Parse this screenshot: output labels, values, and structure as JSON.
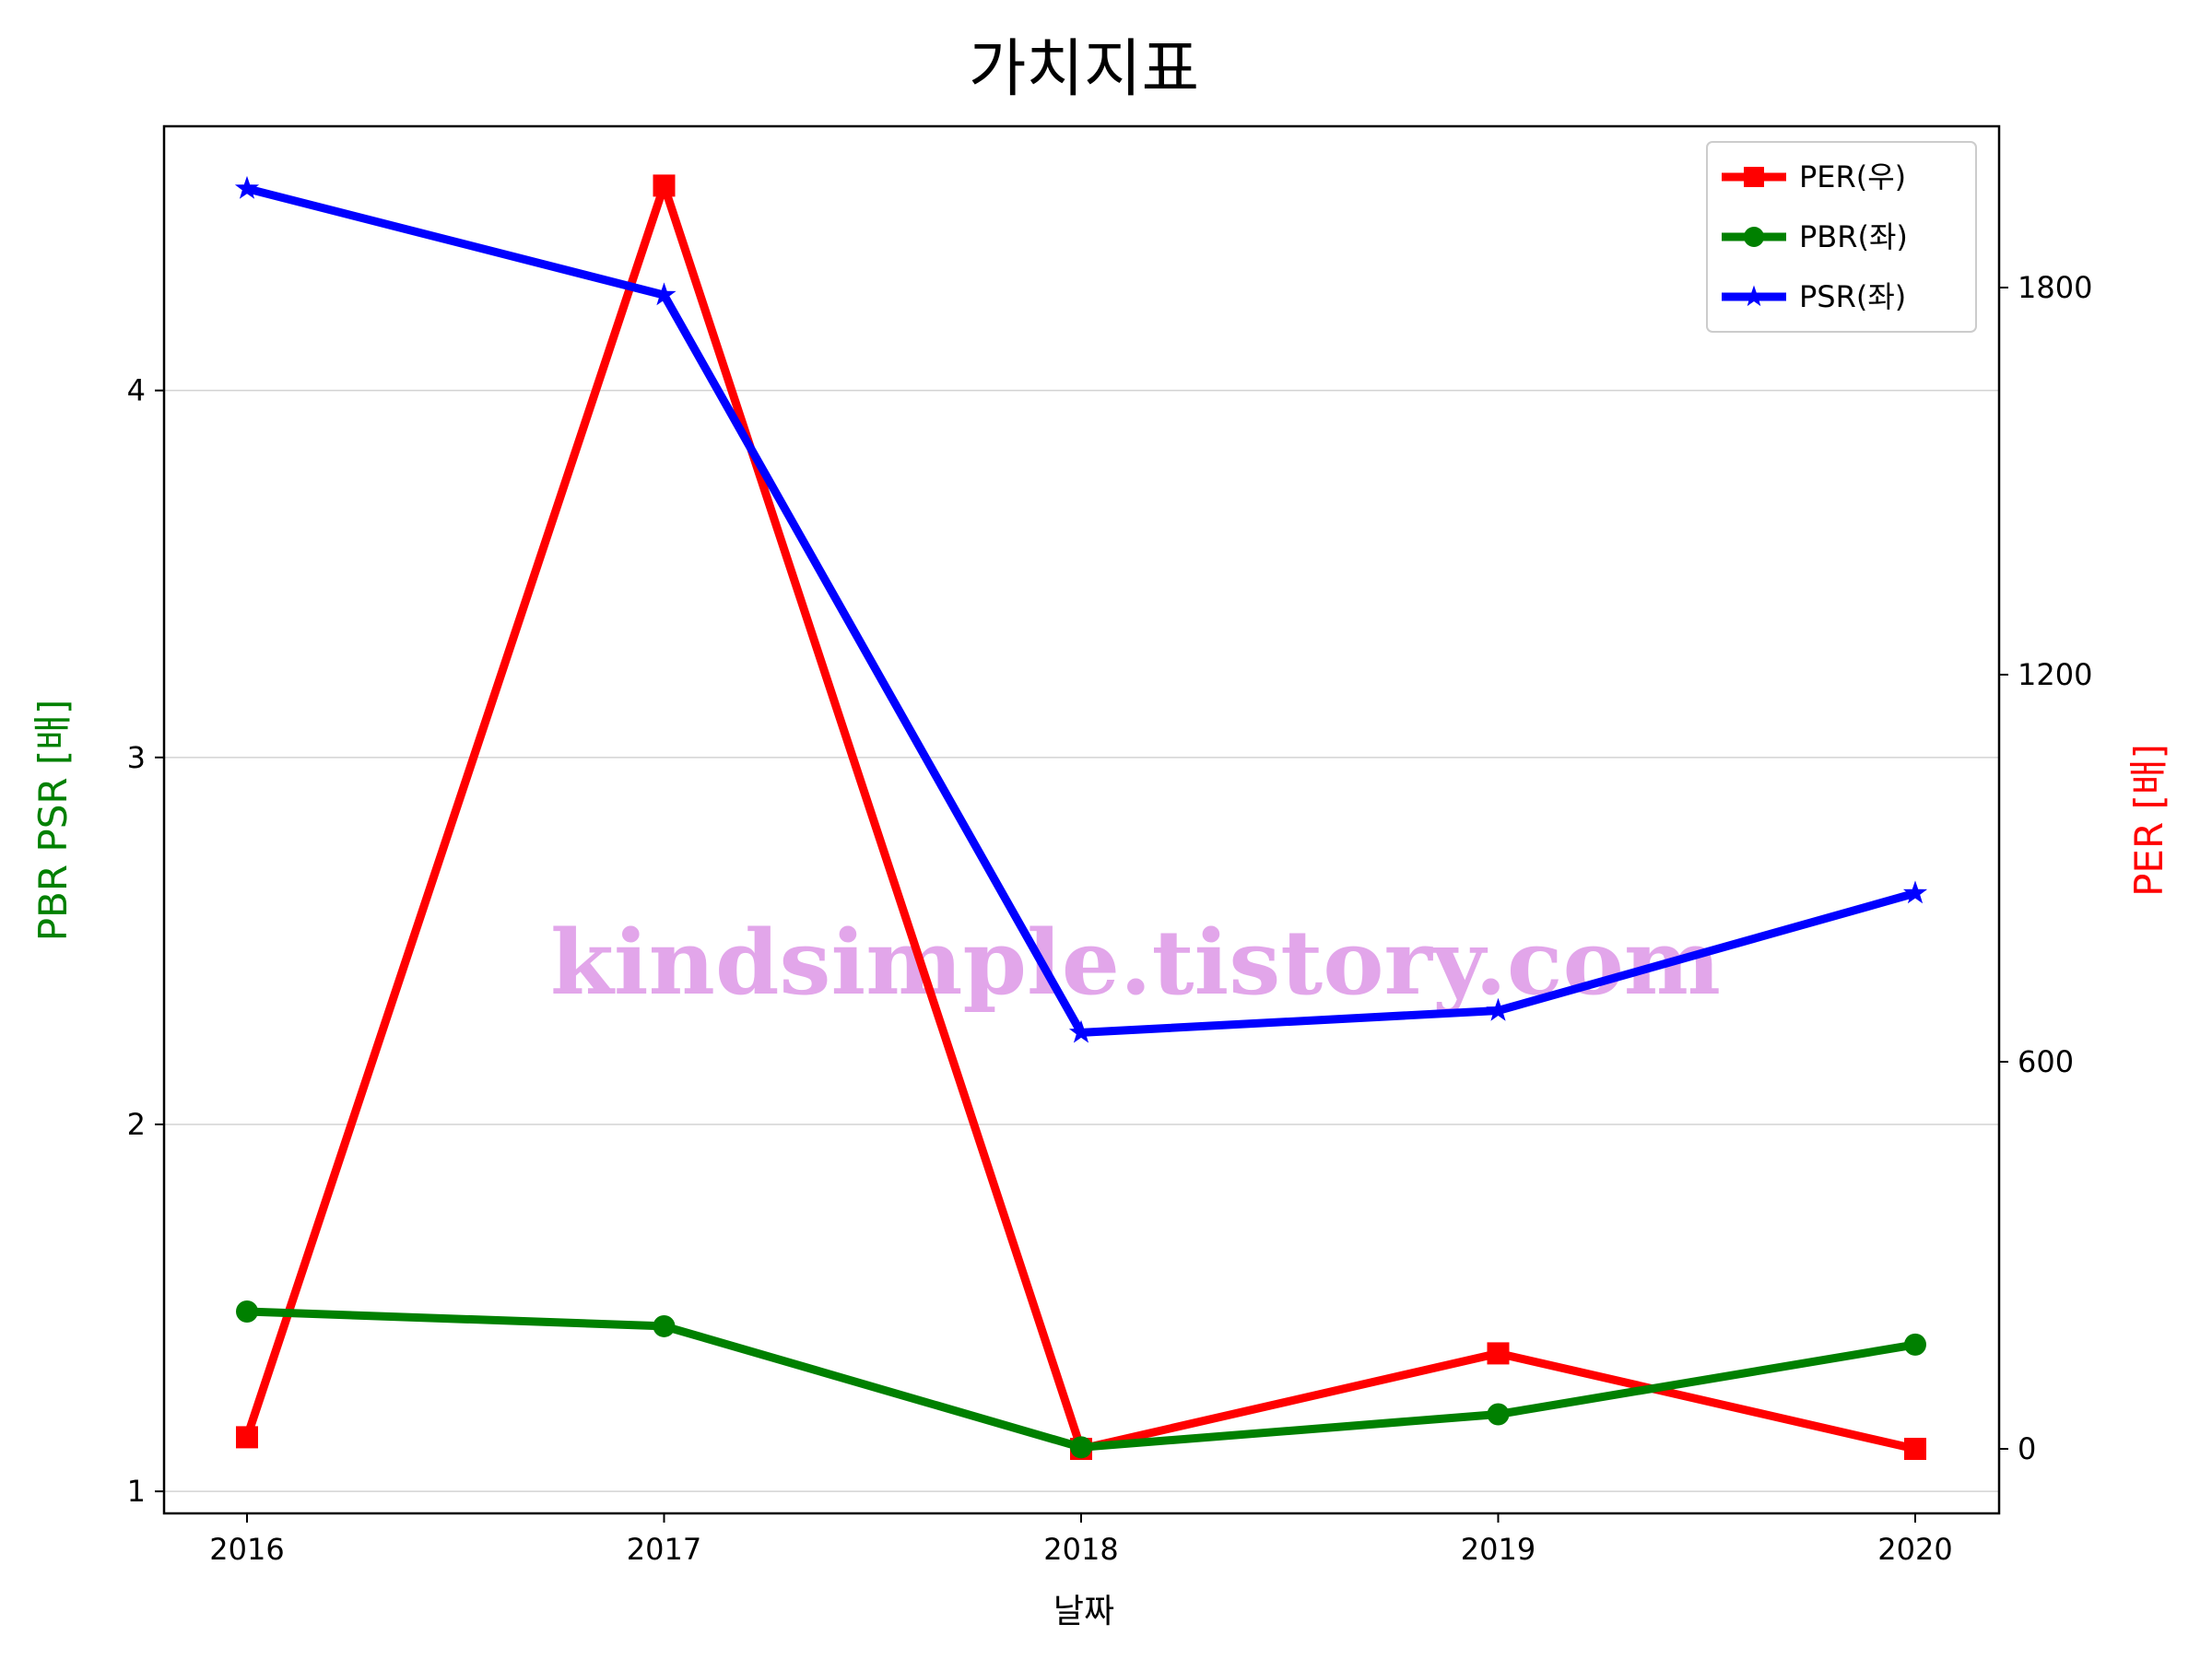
{
  "chart_data": {
    "type": "line",
    "title": "가치지표",
    "xlabel": "날짜",
    "ylabel_left": "PBR PSR [배]",
    "ylabel_right": "PER [배]",
    "categories": [
      "2016",
      "2017",
      "2018",
      "2019",
      "2020"
    ],
    "left_axis": {
      "ylim": [
        0.94,
        4.72
      ],
      "ticks": [
        1,
        2,
        3,
        4
      ],
      "tick_labels": [
        "1",
        "2",
        "3",
        "4"
      ]
    },
    "right_axis": {
      "ylim": [
        -100,
        2050
      ],
      "ticks": [
        0,
        600,
        1200,
        1800
      ],
      "tick_labels": [
        "0",
        "600",
        "1200",
        "1800"
      ]
    },
    "grid": "horizontal",
    "legend_position": "top-right",
    "series": [
      {
        "name": "PER(우)",
        "axis": "right",
        "color": "#ff0000",
        "marker": "square",
        "values": [
          18,
          1958,
          0,
          148,
          0
        ]
      },
      {
        "name": "PBR(좌)",
        "axis": "left",
        "color": "#008000",
        "marker": "circle",
        "values": [
          1.49,
          1.45,
          1.12,
          1.21,
          1.4
        ]
      },
      {
        "name": "PSR(좌)",
        "axis": "left",
        "color": "#0000ff",
        "marker": "star",
        "values": [
          4.55,
          4.26,
          2.25,
          2.31,
          2.63
        ]
      }
    ],
    "watermark": "kindsimple.tistory.com",
    "watermark_color": "#e2a6ea"
  }
}
